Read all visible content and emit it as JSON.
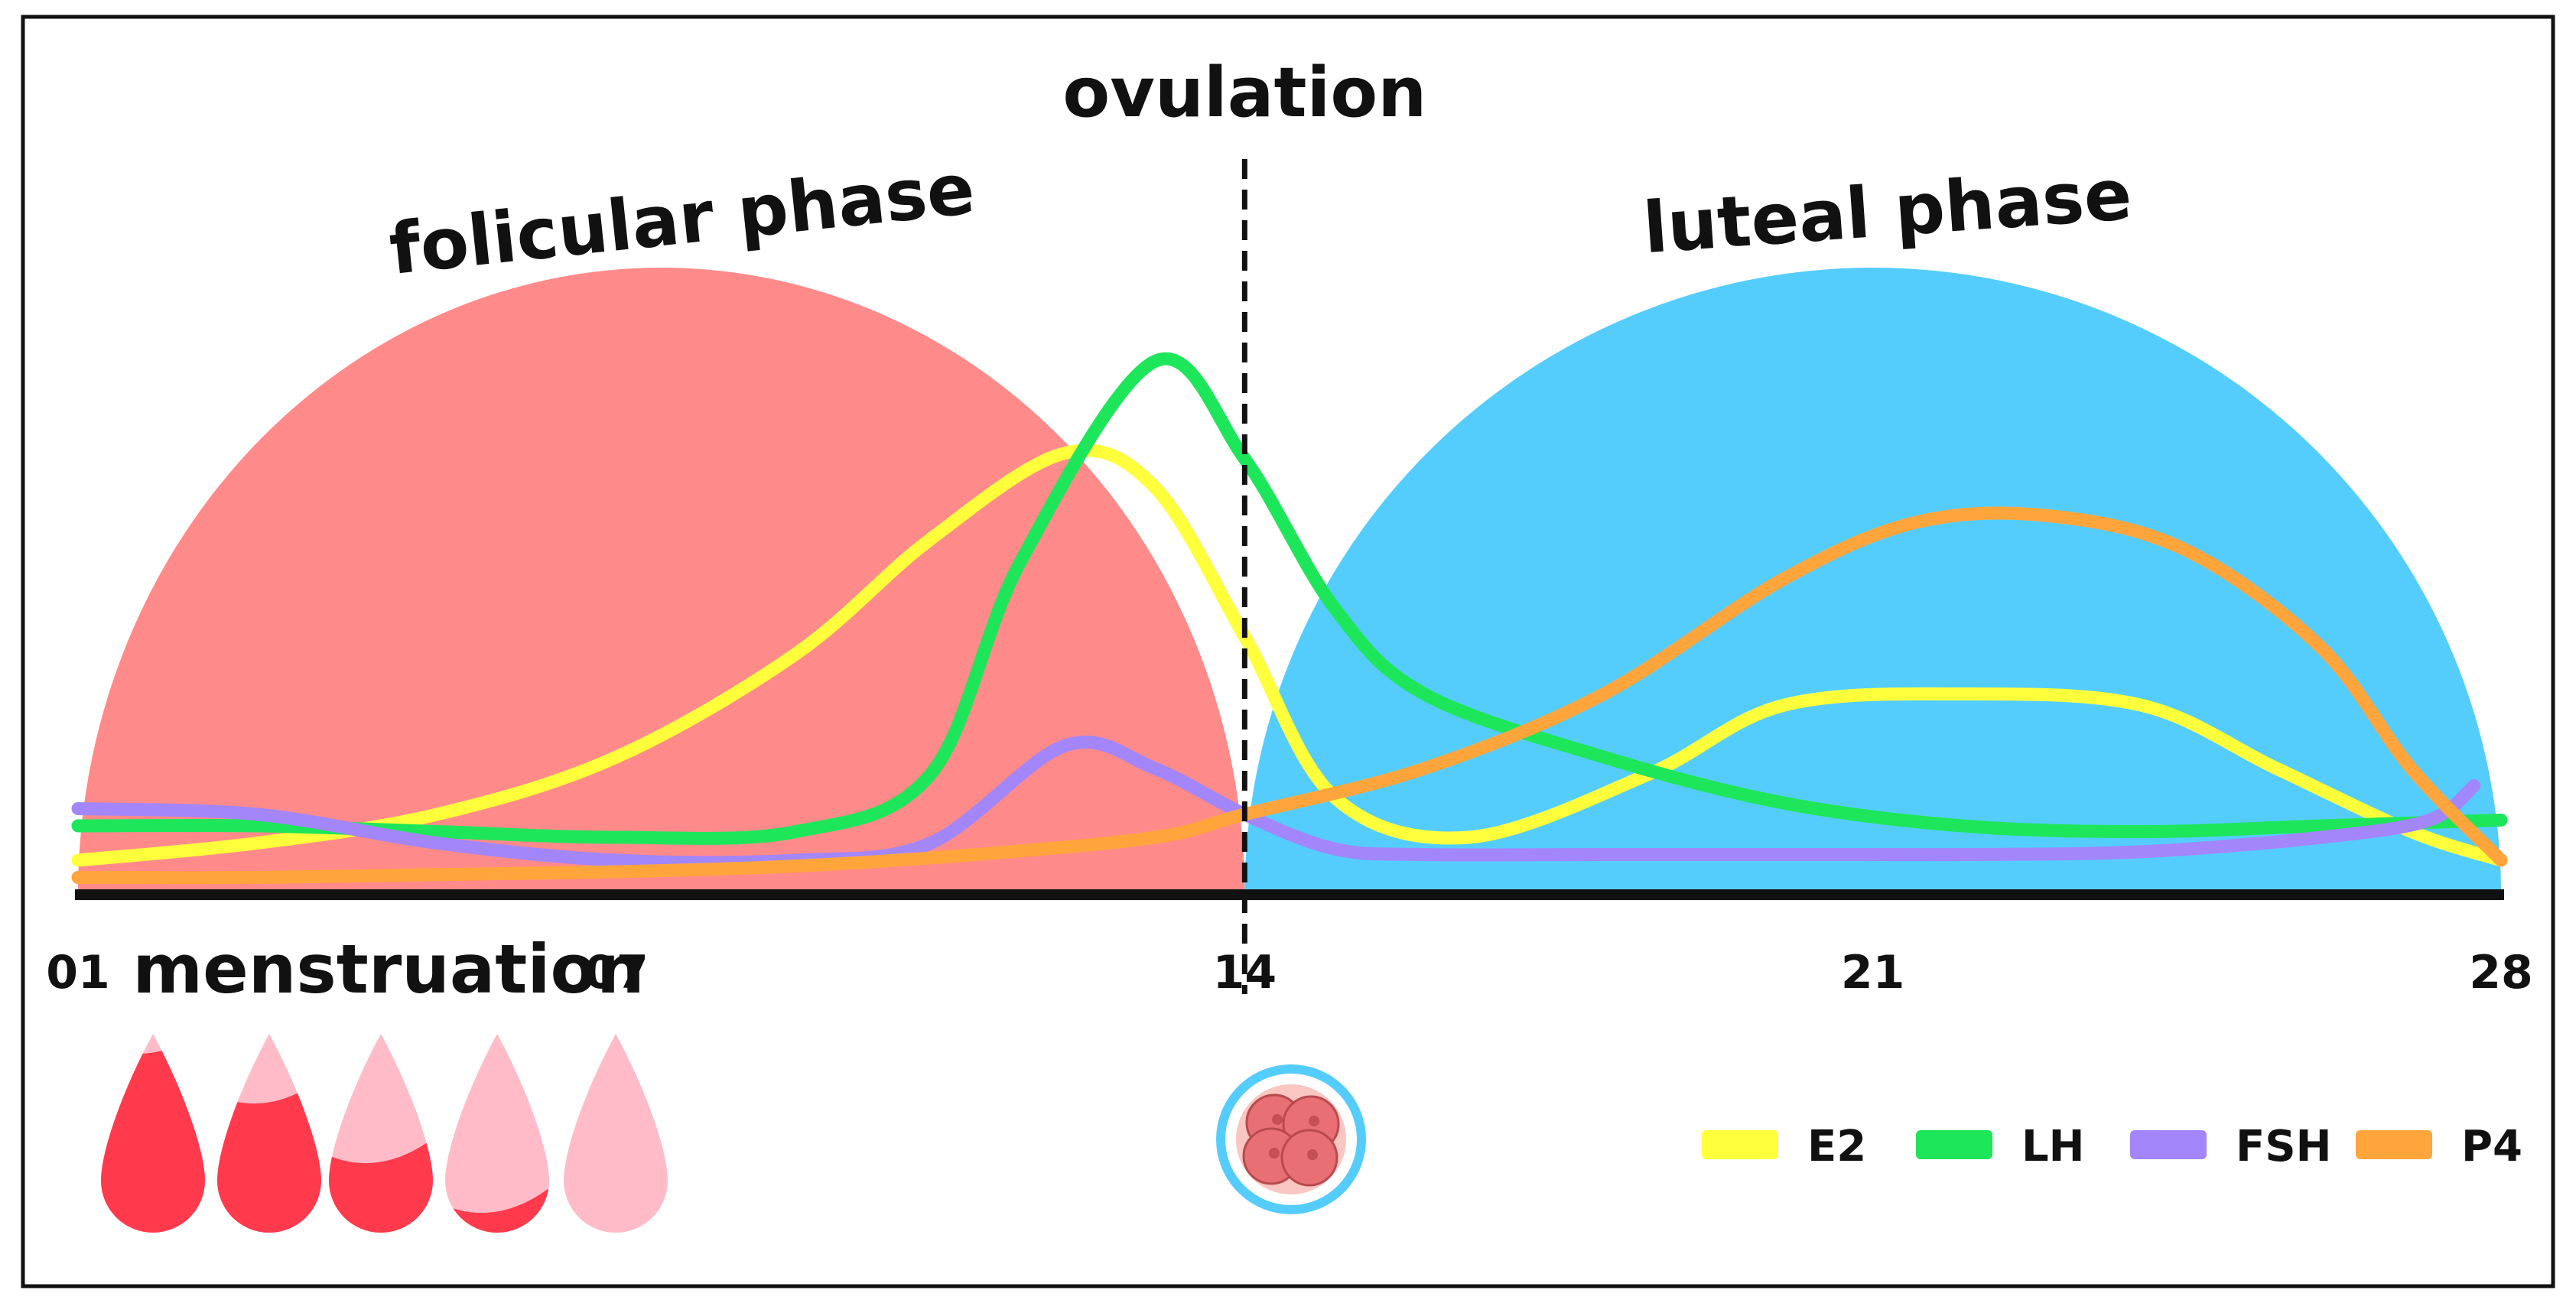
{
  "chart_data": {
    "type": "line",
    "title": "",
    "xlabel": "",
    "ylabel": "",
    "xlim": [
      1,
      28
    ],
    "ylim": [
      0,
      100
    ],
    "grid": false,
    "legend_placement": "bottom-right",
    "x_ticks": [
      {
        "day": 1,
        "label": "01"
      },
      {
        "day": 7,
        "label": "07"
      },
      {
        "day": 14,
        "label": "14"
      },
      {
        "day": 21,
        "label": "21"
      },
      {
        "day": 28,
        "label": "28"
      }
    ],
    "phases": [
      {
        "name": "folicular phase",
        "start": 1,
        "end": 14,
        "color": "#ff8a8a"
      },
      {
        "name": "luteal phase",
        "start": 14,
        "end": 28,
        "color": "#55cdfc"
      }
    ],
    "ovulation": {
      "label": "ovulation",
      "day": 14
    },
    "menstruation": {
      "label": "menstruation",
      "start": 1,
      "end": 7,
      "drop_fill_levels": [
        1.0,
        0.75,
        0.45,
        0.2,
        0.0
      ]
    },
    "series": [
      {
        "name": "E2",
        "color": "#ffff3c",
        "points": [
          [
            1,
            6
          ],
          [
            3,
            9
          ],
          [
            5,
            14
          ],
          [
            7,
            24
          ],
          [
            9,
            42
          ],
          [
            10.5,
            62
          ],
          [
            12,
            77
          ],
          [
            13,
            71
          ],
          [
            14,
            45
          ],
          [
            15,
            17
          ],
          [
            16.5,
            10
          ],
          [
            18.5,
            21
          ],
          [
            20,
            33
          ],
          [
            22,
            35
          ],
          [
            24,
            33
          ],
          [
            25.5,
            22
          ],
          [
            27,
            11
          ],
          [
            28,
            6
          ]
        ]
      },
      {
        "name": "LH",
        "color": "#1ee65a",
        "points": [
          [
            1,
            12
          ],
          [
            3,
            12
          ],
          [
            5,
            11
          ],
          [
            7,
            10
          ],
          [
            9,
            11
          ],
          [
            10.5,
            21
          ],
          [
            11.5,
            58
          ],
          [
            13,
            93
          ],
          [
            14,
            76
          ],
          [
            15,
            50
          ],
          [
            16,
            35
          ],
          [
            18,
            24
          ],
          [
            20,
            16
          ],
          [
            22,
            12
          ],
          [
            24,
            11
          ],
          [
            26,
            12
          ],
          [
            28,
            13
          ]
        ]
      },
      {
        "name": "FSH",
        "color": "#a286fa",
        "points": [
          [
            1,
            15
          ],
          [
            3,
            14
          ],
          [
            5,
            9
          ],
          [
            7,
            6
          ],
          [
            9,
            6
          ],
          [
            10.5,
            9
          ],
          [
            12,
            26
          ],
          [
            13,
            22
          ],
          [
            14,
            14
          ],
          [
            15,
            8
          ],
          [
            16,
            7
          ],
          [
            18,
            7
          ],
          [
            20,
            7
          ],
          [
            22,
            7
          ],
          [
            24,
            7.5
          ],
          [
            26,
            10
          ],
          [
            27.2,
            13
          ],
          [
            27.7,
            19
          ]
        ]
      },
      {
        "name": "P4",
        "color": "#ffa53c",
        "points": [
          [
            1,
            3
          ],
          [
            3,
            3
          ],
          [
            5,
            3.5
          ],
          [
            7,
            4
          ],
          [
            9,
            5
          ],
          [
            11,
            7
          ],
          [
            13,
            10
          ],
          [
            14,
            14
          ],
          [
            16,
            22
          ],
          [
            18,
            35
          ],
          [
            20,
            55
          ],
          [
            21.5,
            65
          ],
          [
            23,
            66
          ],
          [
            24.5,
            60
          ],
          [
            26,
            43
          ],
          [
            27,
            22
          ],
          [
            28,
            6
          ]
        ]
      }
    ]
  }
}
